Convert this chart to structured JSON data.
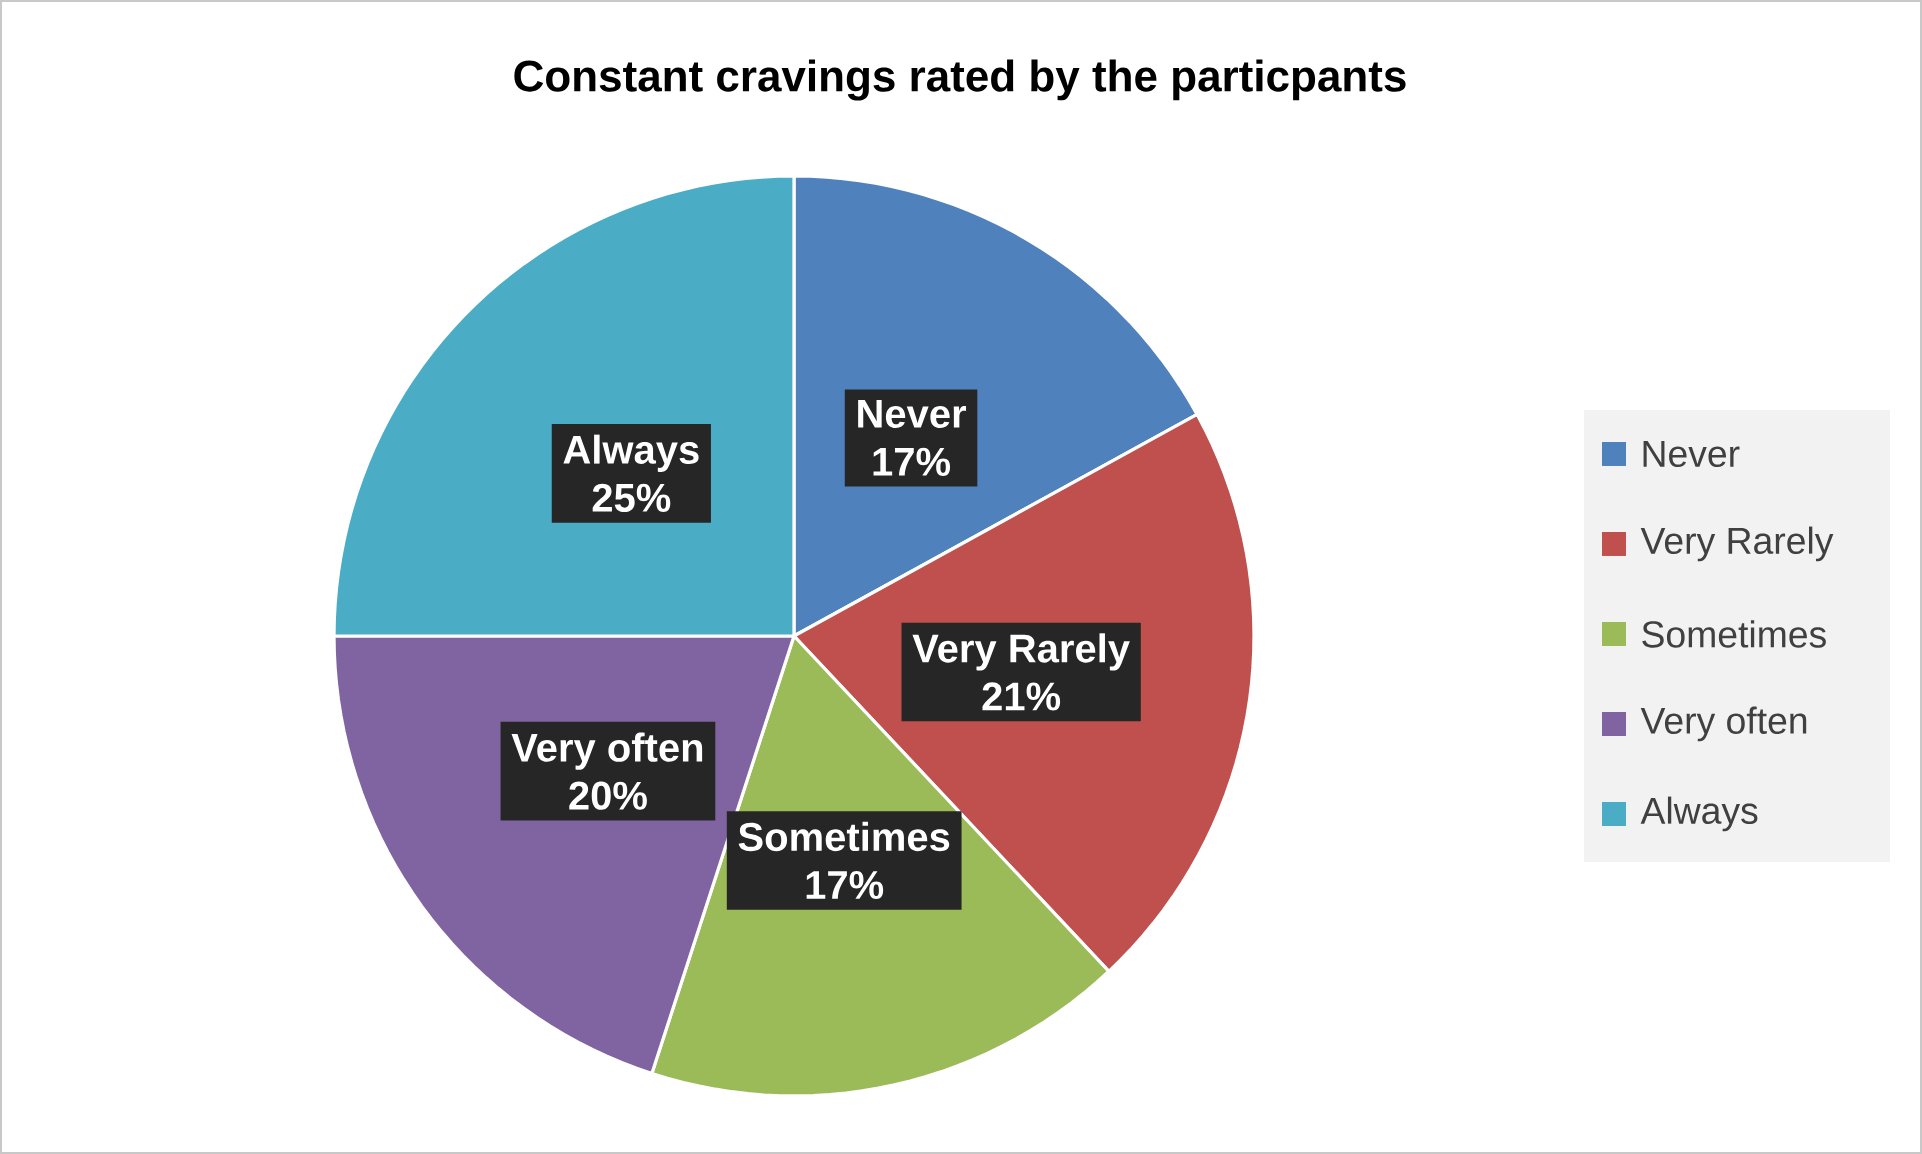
{
  "chart_data": {
    "type": "pie",
    "title": "Constant cravings rated by the particpants",
    "categories": [
      "Never",
      "Very Rarely",
      "Sometimes",
      "Very often",
      "Always"
    ],
    "values": [
      17,
      21,
      17,
      20,
      25
    ],
    "value_labels": [
      "17%",
      "21%",
      "17%",
      "20%",
      "25%"
    ],
    "colors": [
      "#4f81bd",
      "#c0504d",
      "#9bbb59",
      "#8064a2",
      "#4bacc6"
    ],
    "legend": "right"
  }
}
